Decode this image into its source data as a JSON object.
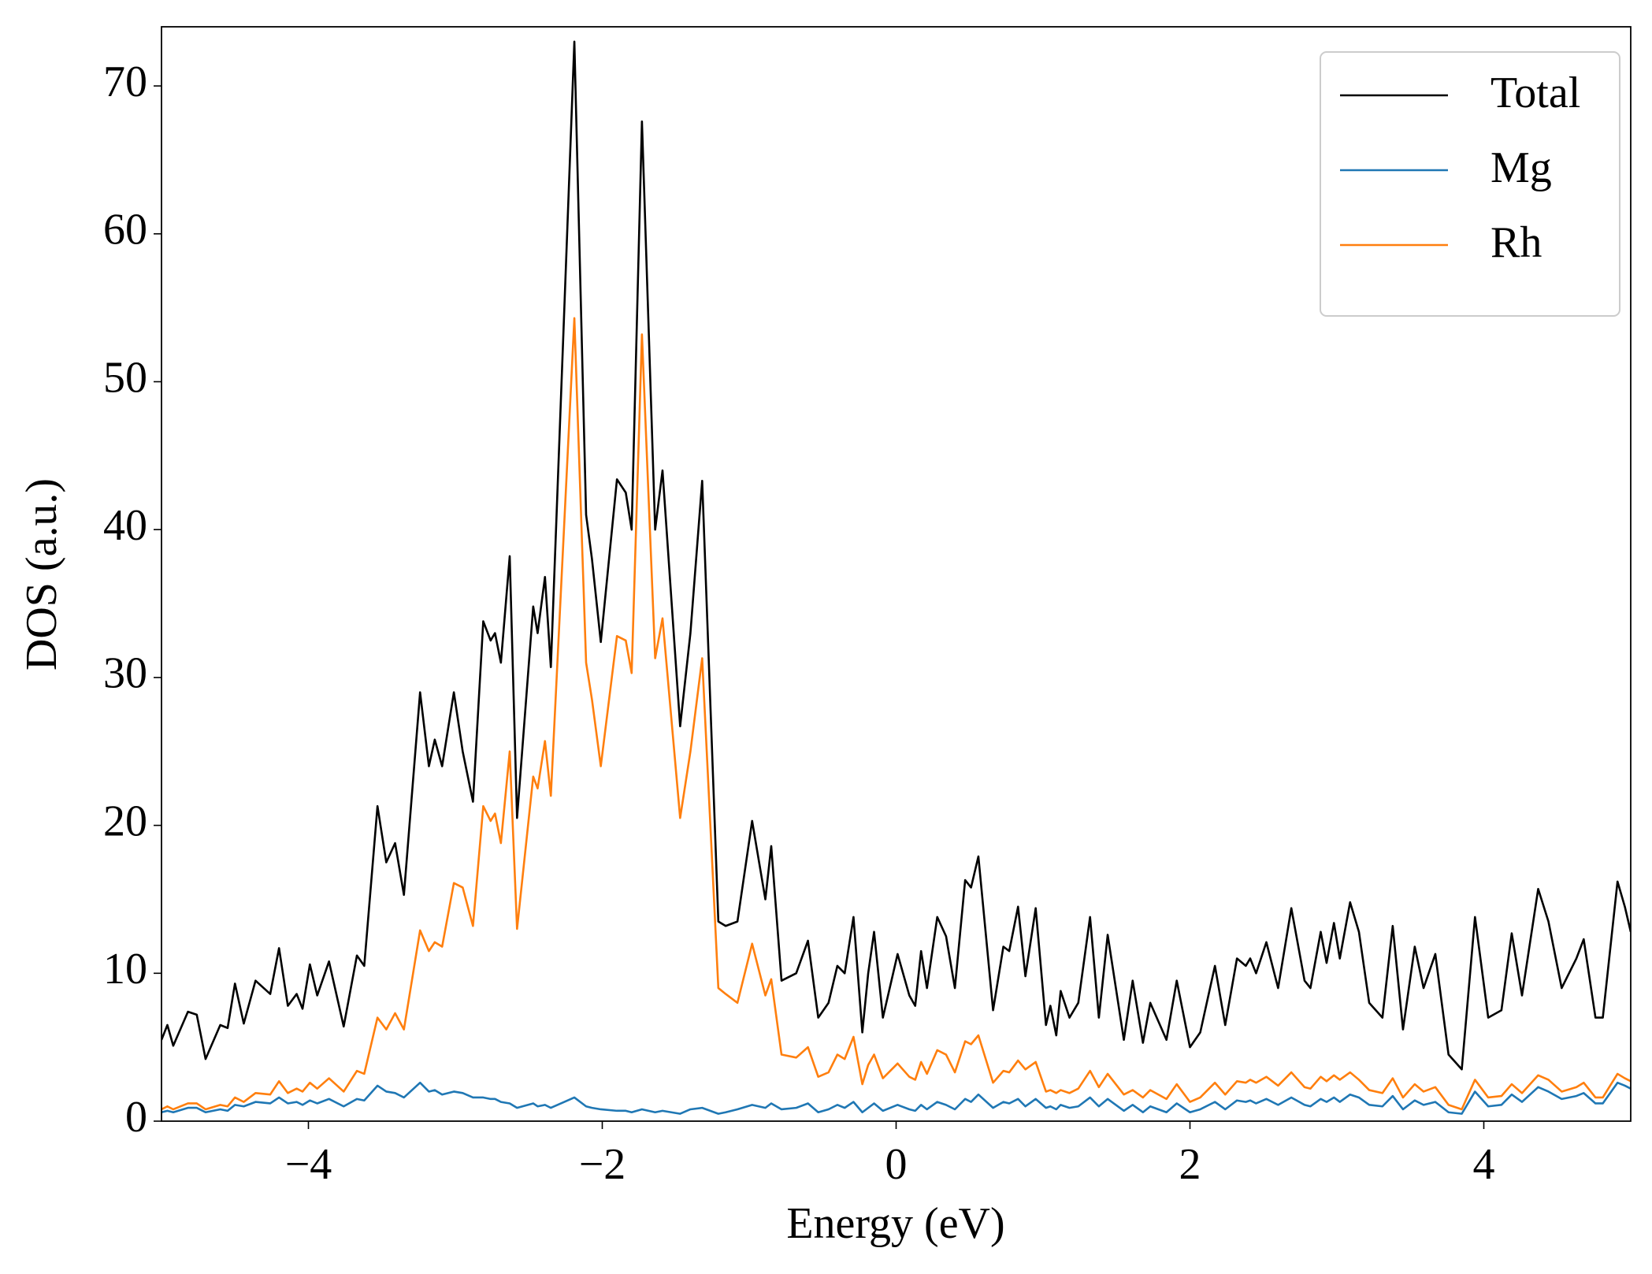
{
  "chart_data": {
    "type": "line",
    "x_label": "Energy (eV)",
    "y_label": "DOS (a.u.)",
    "xlim": [
      -5,
      5
    ],
    "ylim": [
      0,
      74
    ],
    "xticks": [
      {
        "value": -4,
        "label": "−4"
      },
      {
        "value": -2,
        "label": "−2"
      },
      0,
      2,
      4
    ],
    "yticks": [
      0,
      10,
      20,
      30,
      40,
      50,
      60,
      70
    ],
    "legend": "upper right",
    "x": [
      -5.0,
      -4.96,
      -4.92,
      -4.82,
      -4.76,
      -4.7,
      -4.6,
      -4.55,
      -4.5,
      -4.44,
      -4.36,
      -4.26,
      -4.2,
      -4.14,
      -4.08,
      -4.04,
      -3.99,
      -3.94,
      -3.86,
      -3.76,
      -3.67,
      -3.62,
      -3.53,
      -3.47,
      -3.41,
      -3.35,
      -3.24,
      -3.18,
      -3.14,
      -3.09,
      -3.01,
      -2.95,
      -2.88,
      -2.81,
      -2.76,
      -2.73,
      -2.69,
      -2.63,
      -2.58,
      -2.47,
      -2.44,
      -2.39,
      -2.35,
      -2.19,
      -2.11,
      -2.07,
      -2.01,
      -1.9,
      -1.84,
      -1.8,
      -1.73,
      -1.64,
      -1.59,
      -1.47,
      -1.4,
      -1.32,
      -1.21,
      -1.16,
      -1.08,
      -0.98,
      -0.89,
      -0.85,
      -0.78,
      -0.68,
      -0.6,
      -0.53,
      -0.46,
      -0.4,
      -0.35,
      -0.29,
      -0.23,
      -0.19,
      -0.15,
      -0.09,
      0.01,
      0.09,
      0.13,
      0.17,
      0.21,
      0.28,
      0.34,
      0.4,
      0.47,
      0.51,
      0.56,
      0.66,
      0.73,
      0.77,
      0.83,
      0.88,
      0.95,
      1.02,
      1.05,
      1.09,
      1.12,
      1.18,
      1.24,
      1.32,
      1.38,
      1.44,
      1.55,
      1.61,
      1.68,
      1.73,
      1.84,
      1.91,
      2.0,
      2.07,
      2.17,
      2.24,
      2.32,
      2.38,
      2.41,
      2.45,
      2.52,
      2.6,
      2.69,
      2.78,
      2.82,
      2.89,
      2.93,
      2.98,
      3.02,
      3.09,
      3.15,
      3.22,
      3.31,
      3.38,
      3.45,
      3.53,
      3.59,
      3.67,
      3.76,
      3.85,
      3.94,
      4.03,
      4.12,
      4.19,
      4.26,
      4.37,
      4.44,
      4.53,
      4.63,
      4.68,
      4.76,
      4.81,
      4.91,
      4.96,
      5.0
    ],
    "series": [
      {
        "name": "Total",
        "color": "#000000",
        "values": [
          5.5,
          6.5,
          5.1,
          7.4,
          7.2,
          4.2,
          6.5,
          6.3,
          9.3,
          6.6,
          9.5,
          8.6,
          11.7,
          7.8,
          8.6,
          7.6,
          10.6,
          8.5,
          10.8,
          6.4,
          11.2,
          10.5,
          21.3,
          17.5,
          18.8,
          15.3,
          29.0,
          24.0,
          25.8,
          24.0,
          29.0,
          25.0,
          21.6,
          33.8,
          32.5,
          33.0,
          31.0,
          38.2,
          20.5,
          34.8,
          33.0,
          36.8,
          30.7,
          73.0,
          41.0,
          38.0,
          32.4,
          43.4,
          42.5,
          40.0,
          67.6,
          40.0,
          44.0,
          26.7,
          33.0,
          43.3,
          13.5,
          13.2,
          13.5,
          20.3,
          15.0,
          18.6,
          9.5,
          10.0,
          12.2,
          7.0,
          8.0,
          10.5,
          10.0,
          13.8,
          6.0,
          10.0,
          12.8,
          7.0,
          11.3,
          8.5,
          7.8,
          11.5,
          9.0,
          13.8,
          12.5,
          9.0,
          16.3,
          15.8,
          17.9,
          7.5,
          11.8,
          11.5,
          14.5,
          9.8,
          14.4,
          6.5,
          7.8,
          5.8,
          8.8,
          7.0,
          8.0,
          13.8,
          7.0,
          12.6,
          5.5,
          9.5,
          5.3,
          8.0,
          5.5,
          9.5,
          5.0,
          6.0,
          10.5,
          6.5,
          11.0,
          10.5,
          11.0,
          10.0,
          12.1,
          9.0,
          14.4,
          9.5,
          9.0,
          12.8,
          10.7,
          13.4,
          11.0,
          14.8,
          12.8,
          8.0,
          7.0,
          13.2,
          6.2,
          11.8,
          9.0,
          11.3,
          4.5,
          3.5,
          13.8,
          7.0,
          7.5,
          12.7,
          8.5,
          15.7,
          13.5,
          9.0,
          11.0,
          12.3,
          7.0,
          7.0,
          16.2,
          14.5,
          12.8
        ]
      },
      {
        "name": "Mg",
        "color": "#1f77b4",
        "values": [
          0.6,
          0.7,
          0.6,
          0.9,
          0.9,
          0.6,
          0.8,
          0.7,
          1.1,
          1.0,
          1.3,
          1.2,
          1.6,
          1.2,
          1.3,
          1.1,
          1.4,
          1.2,
          1.5,
          1.0,
          1.5,
          1.4,
          2.4,
          2.0,
          1.9,
          1.6,
          2.6,
          2.0,
          2.1,
          1.8,
          2.0,
          1.9,
          1.6,
          1.6,
          1.5,
          1.5,
          1.3,
          1.2,
          0.9,
          1.2,
          1.0,
          1.1,
          0.9,
          1.6,
          1.0,
          0.9,
          0.8,
          0.7,
          0.7,
          0.6,
          0.8,
          0.6,
          0.7,
          0.5,
          0.8,
          0.9,
          0.5,
          0.6,
          0.8,
          1.1,
          0.9,
          1.2,
          0.8,
          0.9,
          1.2,
          0.6,
          0.8,
          1.1,
          0.9,
          1.3,
          0.6,
          0.9,
          1.2,
          0.7,
          1.1,
          0.8,
          0.7,
          1.1,
          0.8,
          1.3,
          1.1,
          0.8,
          1.5,
          1.3,
          1.8,
          0.9,
          1.3,
          1.2,
          1.5,
          1.0,
          1.5,
          0.9,
          1.0,
          0.8,
          1.1,
          0.9,
          1.0,
          1.6,
          1.0,
          1.5,
          0.7,
          1.1,
          0.6,
          1.0,
          0.6,
          1.2,
          0.6,
          0.8,
          1.3,
          0.8,
          1.4,
          1.3,
          1.4,
          1.2,
          1.5,
          1.1,
          1.6,
          1.1,
          1.0,
          1.5,
          1.3,
          1.6,
          1.3,
          1.8,
          1.6,
          1.1,
          1.0,
          1.7,
          0.8,
          1.4,
          1.1,
          1.3,
          0.6,
          0.5,
          2.0,
          1.0,
          1.1,
          1.8,
          1.3,
          2.3,
          2.0,
          1.5,
          1.7,
          1.9,
          1.2,
          1.2,
          2.6,
          2.4,
          2.2
        ]
      },
      {
        "name": "Rh",
        "color": "#ff7f0e",
        "values": [
          0.8,
          1.0,
          0.8,
          1.2,
          1.2,
          0.8,
          1.1,
          1.0,
          1.6,
          1.3,
          1.9,
          1.8,
          2.7,
          1.9,
          2.2,
          2.0,
          2.6,
          2.2,
          2.9,
          2.0,
          3.4,
          3.2,
          7.0,
          6.2,
          7.3,
          6.2,
          12.9,
          11.5,
          12.1,
          11.8,
          16.1,
          15.8,
          13.2,
          21.3,
          20.3,
          20.8,
          18.8,
          25.0,
          13.0,
          23.3,
          22.5,
          25.7,
          22.0,
          54.3,
          31.0,
          28.5,
          24.0,
          32.8,
          32.5,
          30.3,
          53.2,
          31.3,
          34.0,
          20.5,
          25.0,
          31.3,
          9.0,
          8.6,
          8.0,
          12.0,
          8.5,
          9.6,
          4.5,
          4.3,
          5.0,
          3.0,
          3.3,
          4.5,
          4.2,
          5.7,
          2.5,
          3.8,
          4.5,
          2.9,
          3.9,
          3.0,
          2.8,
          4.0,
          3.2,
          4.8,
          4.5,
          3.3,
          5.4,
          5.2,
          5.8,
          2.6,
          3.4,
          3.3,
          4.1,
          3.5,
          4.0,
          2.0,
          2.1,
          1.9,
          2.1,
          1.9,
          2.2,
          3.4,
          2.3,
          3.2,
          1.8,
          2.1,
          1.6,
          2.1,
          1.5,
          2.5,
          1.3,
          1.6,
          2.6,
          1.8,
          2.7,
          2.6,
          2.8,
          2.6,
          3.0,
          2.4,
          3.3,
          2.3,
          2.2,
          3.0,
          2.7,
          3.1,
          2.8,
          3.3,
          2.8,
          2.1,
          1.9,
          2.9,
          1.6,
          2.5,
          2.0,
          2.3,
          1.1,
          0.8,
          2.8,
          1.6,
          1.7,
          2.5,
          1.9,
          3.1,
          2.8,
          2.0,
          2.3,
          2.6,
          1.6,
          1.6,
          3.2,
          2.9,
          2.7
        ]
      }
    ]
  }
}
